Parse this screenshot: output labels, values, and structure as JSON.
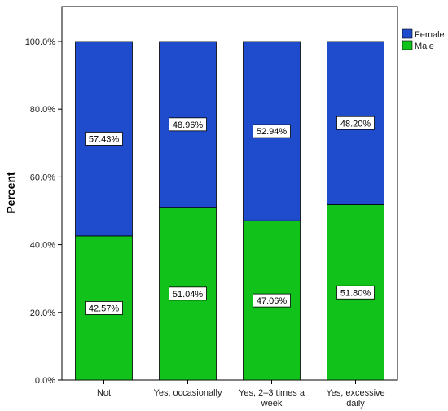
{
  "chart_data": {
    "type": "bar",
    "stacked": true,
    "categories": [
      "Not",
      "Yes, occasionally",
      "Yes, 2–3 times a week",
      "Yes, excessive daily"
    ],
    "category_lines": [
      [
        "Not"
      ],
      [
        "Yes, occasionally"
      ],
      [
        "Yes, 2–3 times a",
        "week"
      ],
      [
        "Yes, excessive",
        "daily"
      ]
    ],
    "series": [
      {
        "name": "Male",
        "values": [
          42.57,
          51.04,
          47.06,
          51.8
        ],
        "labels": [
          "42.57%",
          "51.04%",
          "47.06%",
          "51.80%"
        ],
        "color": "#11c21a"
      },
      {
        "name": "Female",
        "values": [
          57.43,
          48.96,
          52.94,
          48.2
        ],
        "labels": [
          "57.43%",
          "48.96%",
          "52.94%",
          "48.20%"
        ],
        "color": "#1f4ccc"
      }
    ],
    "legend": {
      "entries": [
        "Female",
        "Male"
      ],
      "placement": "top-right"
    },
    "ylabel": "Percent",
    "xlabel": "",
    "ylim": [
      0,
      100
    ],
    "yticks": [
      0,
      20,
      40,
      60,
      80,
      100
    ],
    "ytick_labels": [
      "0.0%",
      "20.0%",
      "40.0%",
      "60.0%",
      "80.0%",
      "100.0%"
    ],
    "grid": false
  }
}
